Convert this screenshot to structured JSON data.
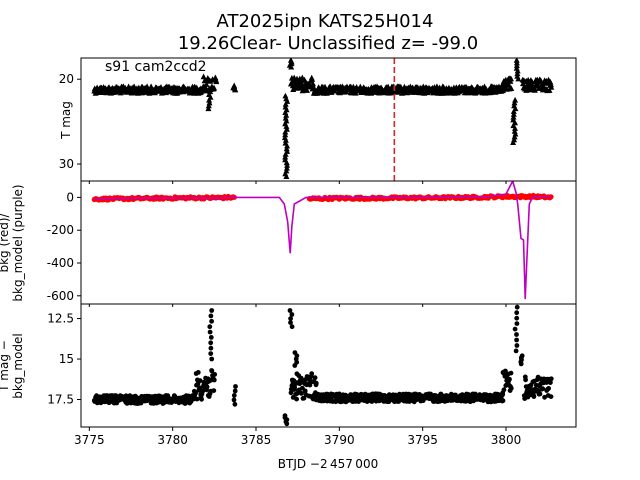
{
  "title_line1": "AT2025ipn  KATS25H014",
  "title_line2": "19.26Clear- Unclassified z= -99.0",
  "sector_label": "s91 cam2ccd2",
  "xlabel": "BTJD −2 457 000",
  "colors": {
    "black": "#000000",
    "red": "#ff0000",
    "purple": "#bf00bf",
    "marker_line": "#d62728"
  },
  "chart_data": [
    {
      "type": "scatter",
      "panel": "top",
      "ylabel": "T mag",
      "ylim": [
        32,
        17.5
      ],
      "xlim": [
        3774.5,
        3804.2
      ],
      "yticks": [
        20,
        30
      ],
      "marker": "triangle",
      "vertical_line_x": 3793.3,
      "segments": [
        {
          "x0": 3775.3,
          "x1": 3781.8,
          "base": 21.3,
          "amp": 0.4
        },
        {
          "x0": 3781.8,
          "x1": 3782.6,
          "base": 20.6,
          "amp": 0.9
        },
        {
          "x0": 3787.1,
          "x1": 3788.4,
          "base": 20.6,
          "amp": 0.8
        },
        {
          "x0": 3788.4,
          "x1": 3799.8,
          "base": 21.3,
          "amp": 0.4
        },
        {
          "x0": 3799.8,
          "x1": 3800.3,
          "base": 20.6,
          "amp": 0.7
        },
        {
          "x0": 3801.0,
          "x1": 3802.7,
          "base": 20.8,
          "amp": 0.7
        }
      ],
      "clusters": [
        {
          "x": 3782.2,
          "y0": 21.5,
          "y1": 23.5
        },
        {
          "x": 3783.7,
          "y0": 20.8,
          "y1": 21.3
        },
        {
          "x": 3786.8,
          "y0": 22.0,
          "y1": 31.5
        },
        {
          "x": 3787.1,
          "y0": 17.8,
          "y1": 18.6
        },
        {
          "x": 3800.5,
          "y0": 22.5,
          "y1": 27.5
        },
        {
          "x": 3800.7,
          "y0": 17.8,
          "y1": 20.0
        }
      ]
    },
    {
      "type": "line",
      "panel": "middle",
      "ylabel": "bkg (red)/ bkg_model (purple)",
      "ylim": [
        -650,
        100
      ],
      "xlim": [
        3774.5,
        3804.2
      ],
      "yticks": [
        0,
        -200,
        -400,
        -600
      ],
      "series": [
        {
          "color": "#ff0000",
          "marker": "dot",
          "x": [
            3775.3,
            3777,
            3779,
            3781,
            3782.6,
            3783.7,
            3788.2,
            3790,
            3792,
            3794,
            3796,
            3798,
            3799.8,
            3801.7,
            3802.7
          ],
          "y": [
            -10,
            -8,
            -5,
            -3,
            -2,
            0,
            -8,
            -5,
            -5,
            -3,
            -2,
            0,
            5,
            5,
            0
          ]
        },
        {
          "color": "#bf00bf",
          "x": [
            3775.3,
            3778,
            3781,
            3782.6,
            3783.7,
            3785.5,
            3786.4,
            3786.7,
            3786.9,
            3787.05,
            3787.15,
            3787.3,
            3788,
            3790,
            3795,
            3799,
            3800,
            3800.4,
            3800.6,
            3800.7,
            3800.9,
            3801.05,
            3801.15,
            3801.25,
            3801.4,
            3801.6,
            3802,
            3802.7
          ],
          "y": [
            -8,
            -5,
            -3,
            -5,
            0,
            0,
            0,
            -40,
            -150,
            -340,
            -180,
            -40,
            0,
            0,
            0,
            5,
            20,
            100,
            30,
            -40,
            -250,
            -260,
            -620,
            -390,
            -40,
            0,
            5,
            5
          ]
        }
      ]
    },
    {
      "type": "scatter",
      "panel": "bottom",
      "ylabel": "T mag − bkg_model",
      "ylim": [
        19.2,
        11.6
      ],
      "xlim": [
        3774.5,
        3804.2
      ],
      "xticks": [
        3775,
        3780,
        3785,
        3790,
        3795,
        3800
      ],
      "yticks": [
        12.5,
        15.0,
        17.5
      ],
      "segments": [
        {
          "x0": 3775.3,
          "x1": 3781.3,
          "base": 17.5,
          "amp": 0.25
        },
        {
          "x0": 3781.3,
          "x1": 3782.5,
          "base": 16.6,
          "amp": 0.9
        },
        {
          "x0": 3787.1,
          "x1": 3788.6,
          "base": 16.7,
          "amp": 0.8
        },
        {
          "x0": 3788.6,
          "x1": 3799.8,
          "base": 17.4,
          "amp": 0.25
        },
        {
          "x0": 3799.8,
          "x1": 3800.3,
          "base": 16.4,
          "amp": 0.7
        },
        {
          "x0": 3801.1,
          "x1": 3802.7,
          "base": 16.8,
          "amp": 0.7
        }
      ],
      "clusters": [
        {
          "x": 3782.3,
          "y0": 12.0,
          "y1": 15.0
        },
        {
          "x": 3783.7,
          "y0": 16.7,
          "y1": 17.8
        },
        {
          "x": 3786.8,
          "y0": 18.5,
          "y1": 19.0
        },
        {
          "x": 3787.1,
          "y0": 12.0,
          "y1": 13.0
        },
        {
          "x": 3787.4,
          "y0": 14.6,
          "y1": 15.4
        },
        {
          "x": 3800.6,
          "y0": 11.8,
          "y1": 14.5
        },
        {
          "x": 3800.9,
          "y0": 14.8,
          "y1": 15.3
        }
      ]
    }
  ]
}
